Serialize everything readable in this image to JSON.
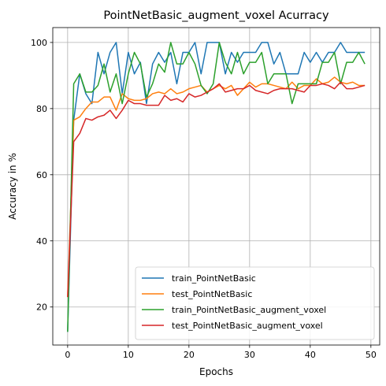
{
  "chart_data": {
    "type": "line",
    "title": "PointNetBasic_augment_voxel Acurracy",
    "xlabel": "Epochs",
    "ylabel": "Accuracy in %",
    "xlim": [
      -2.45,
      51.45
    ],
    "ylim": [
      8.5,
      104.5
    ],
    "xticks": [
      0,
      10,
      20,
      30,
      40,
      50
    ],
    "yticks": [
      20,
      40,
      60,
      80,
      100
    ],
    "grid": true,
    "legend_position": "lower-right",
    "x": [
      0,
      1,
      2,
      3,
      4,
      5,
      6,
      7,
      8,
      9,
      10,
      11,
      12,
      13,
      14,
      15,
      16,
      17,
      18,
      19,
      20,
      21,
      22,
      23,
      24,
      25,
      26,
      27,
      28,
      29,
      30,
      31,
      32,
      33,
      34,
      35,
      36,
      37,
      38,
      39,
      40,
      41,
      42,
      43,
      44,
      45,
      46,
      47,
      48,
      49
    ],
    "series": [
      {
        "name": "train_PointNetBasic",
        "color": "#1f77b4",
        "values": [
          12.5,
          76.5,
          90.5,
          84.5,
          81.5,
          97,
          90.5,
          97,
          100,
          84.5,
          97,
          90.5,
          94,
          81.5,
          93.5,
          97,
          94,
          97,
          87.5,
          97,
          97,
          100,
          90.5,
          100,
          100,
          100,
          90.5,
          97,
          94,
          97,
          97,
          97,
          100,
          100,
          93.5,
          97,
          90.5,
          90.5,
          90.5,
          97,
          94,
          97,
          94,
          97,
          97,
          100,
          97,
          97,
          97,
          97
        ]
      },
      {
        "name": "test_PointNetBasic",
        "color": "#ff7f0e",
        "values": [
          23,
          76.5,
          77.5,
          80,
          82,
          82,
          83.5,
          83.5,
          79.5,
          84.5,
          83,
          82.5,
          82.5,
          83,
          84.5,
          85,
          84.5,
          86,
          84.5,
          85,
          86,
          86.5,
          87,
          85,
          86,
          87,
          86,
          87,
          84,
          86,
          88,
          86.5,
          87.5,
          87.5,
          87,
          86.5,
          86,
          88,
          86,
          87,
          87,
          89,
          87.5,
          88,
          89.5,
          88,
          87.5,
          88,
          87,
          87
        ]
      },
      {
        "name": "train_PointNetBasic_augment_voxel",
        "color": "#2ca02c",
        "values": [
          12.5,
          87.5,
          90.5,
          85,
          85,
          87,
          93.5,
          85,
          90.5,
          81.5,
          90.5,
          97,
          93.5,
          83.5,
          87.5,
          93.5,
          91,
          100,
          93.5,
          93.5,
          97,
          93.5,
          87,
          84.5,
          87.5,
          100,
          94,
          90.5,
          97,
          90.5,
          94,
          94,
          97,
          87.5,
          90.5,
          90.5,
          90.5,
          81.5,
          87.5,
          87.5,
          87.5,
          87.5,
          94,
          94,
          97,
          87.5,
          94,
          94,
          97,
          93.5
        ]
      },
      {
        "name": "test_PointNetBasic_augment_voxel",
        "color": "#d62728",
        "values": [
          23,
          70,
          72.5,
          77,
          76.5,
          77.5,
          78,
          79.5,
          77,
          79.5,
          82.5,
          81.5,
          81.5,
          81,
          81,
          81,
          84,
          82.5,
          83,
          82,
          84.5,
          83.5,
          84,
          85,
          86,
          87.5,
          85,
          85.5,
          86,
          86,
          87,
          85.5,
          85,
          84.5,
          85.5,
          86,
          86,
          86,
          85.5,
          85,
          87,
          87,
          87.5,
          87,
          86,
          88,
          86,
          86,
          86.5,
          87
        ]
      }
    ]
  }
}
